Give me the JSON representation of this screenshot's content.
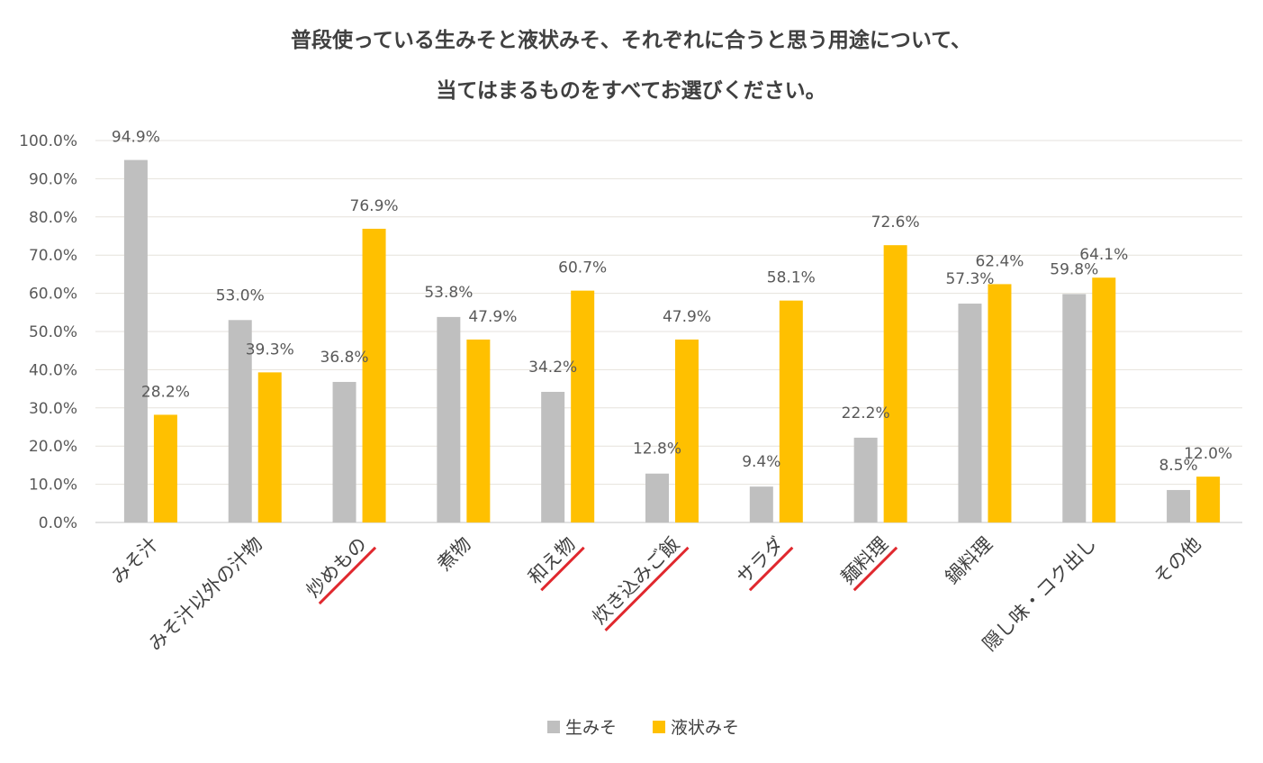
{
  "chart_data": {
    "type": "bar",
    "title_lines": [
      "普段使っている生みそと液状みそ、それぞれに合うと思う用途について、",
      "当てはまるものをすべてお選びください。"
    ],
    "categories": [
      "みそ汁",
      "みそ汁以外の汁物",
      "炒めもの",
      "煮物",
      "和え物",
      "炊き込みご飯",
      "サラダ",
      "麺料理",
      "鍋料理",
      "隠し味・コク出し",
      "その他"
    ],
    "highlighted": [
      false,
      false,
      true,
      false,
      true,
      true,
      true,
      true,
      false,
      false,
      false
    ],
    "series": [
      {
        "name": "生みそ",
        "color": "#BFBFBF",
        "values": [
          94.9,
          53.0,
          36.8,
          53.8,
          34.2,
          12.8,
          9.4,
          22.2,
          57.3,
          59.8,
          8.5
        ],
        "labels": [
          "94.9%",
          "53.0%",
          "36.8%",
          "53.8%",
          "34.2%",
          "12.8%",
          "9.4%",
          "22.2%",
          "57.3%",
          "59.8%",
          "8.5%"
        ]
      },
      {
        "name": "液状みそ",
        "color": "#FFC000",
        "values": [
          28.2,
          39.3,
          76.9,
          47.9,
          60.7,
          47.9,
          58.1,
          72.6,
          62.4,
          64.1,
          12.0
        ],
        "labels": [
          "28.2%",
          "39.3%",
          "76.9%",
          "47.9%",
          "60.7%",
          "47.9%",
          "58.1%",
          "72.6%",
          "62.4%",
          "64.1%",
          "12.0%"
        ]
      }
    ],
    "yticks": [
      "0.0%",
      "10.0%",
      "20.0%",
      "30.0%",
      "40.0%",
      "50.0%",
      "60.0%",
      "70.0%",
      "80.0%",
      "90.0%",
      "100.0%"
    ],
    "ylim": [
      0,
      100
    ],
    "grid": true,
    "legend_position": "bottom",
    "highlight_color": "#E0282E"
  }
}
